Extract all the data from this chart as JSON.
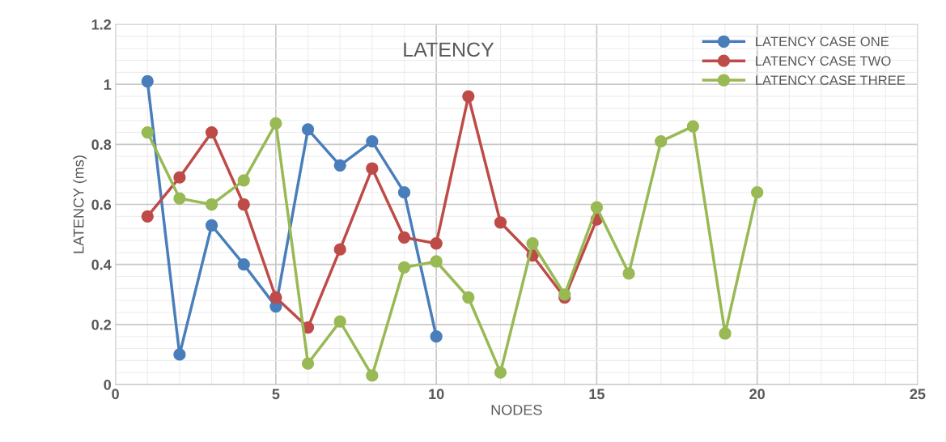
{
  "chart_data": {
    "type": "line",
    "title": "LATENCY",
    "xlabel": "NODES",
    "ylabel": "LATENCY (ms)",
    "xlim": [
      0,
      25
    ],
    "xticks": [
      0,
      5,
      10,
      15,
      20,
      25
    ],
    "ylim": [
      0,
      1.2
    ],
    "yticks": [
      0,
      {
        "value": 0.2,
        "label": "0.2"
      },
      {
        "value": 0.4,
        "label": "0.4"
      },
      {
        "value": 0.6,
        "label": "0.6"
      },
      {
        "value": 0.8,
        "label": "0.8"
      },
      1,
      {
        "value": 1.2,
        "label": "1.2"
      }
    ],
    "grid": true,
    "legend": "top right",
    "marker": "circle",
    "line_style": "solid",
    "series": [
      {
        "name": "LATENCY CASE ONE",
        "color": "#4a7ebb",
        "x": [
          1,
          2,
          3,
          4,
          5,
          6,
          7,
          8,
          9,
          10
        ],
        "values": [
          1.01,
          0.1,
          0.53,
          0.4,
          0.26,
          0.85,
          0.73,
          0.81,
          0.64,
          0.16
        ]
      },
      {
        "name": "LATENCY CASE TWO",
        "color": "#be4b48",
        "x": [
          1,
          2,
          3,
          4,
          5,
          6,
          7,
          8,
          9,
          10,
          11,
          12,
          13,
          14,
          15
        ],
        "values": [
          0.56,
          0.69,
          0.84,
          0.6,
          0.29,
          0.19,
          0.45,
          0.72,
          0.49,
          0.47,
          0.96,
          0.54,
          0.43,
          0.29,
          0.55
        ]
      },
      {
        "name": "LATENCY CASE THREE",
        "color": "#98b954",
        "x": [
          1,
          2,
          3,
          4,
          5,
          6,
          7,
          8,
          9,
          10,
          11,
          12,
          13,
          14,
          15,
          16,
          17,
          18,
          19,
          20
        ],
        "values": [
          0.84,
          0.62,
          0.6,
          0.68,
          0.87,
          0.07,
          0.21,
          0.03,
          0.39,
          0.41,
          0.29,
          0.04,
          0.47,
          0.3,
          0.59,
          0.37,
          0.81,
          0.86,
          0.17,
          0.64
        ]
      }
    ]
  }
}
